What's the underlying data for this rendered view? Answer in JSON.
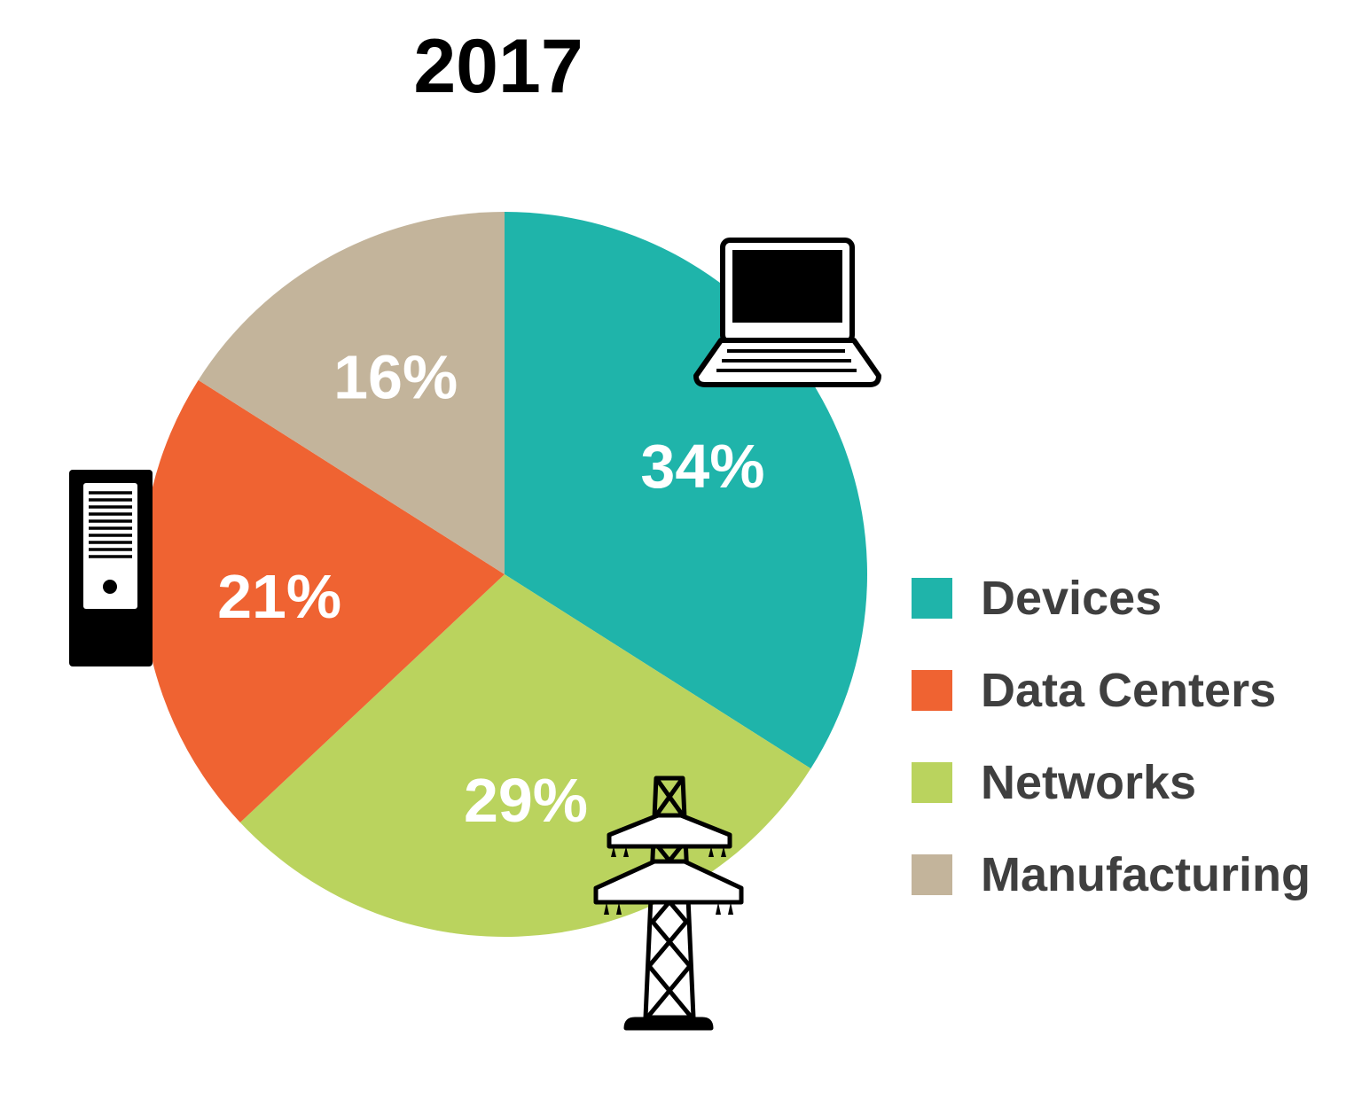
{
  "chart_data": {
    "type": "pie",
    "title": "2017",
    "categories": [
      "Devices",
      "Data Centers",
      "Networks",
      "Manufacturing"
    ],
    "values": [
      34,
      21,
      29,
      16
    ],
    "value_labels": [
      "34%",
      "21%",
      "29%",
      "16%"
    ],
    "unit": "%",
    "colors": [
      "#1fb4aa",
      "#ef6332",
      "#bad35e",
      "#c3b49b"
    ],
    "legend_position": "right",
    "icons": [
      "laptop-icon",
      "server-tower-icon",
      "transmission-tower-icon"
    ]
  }
}
